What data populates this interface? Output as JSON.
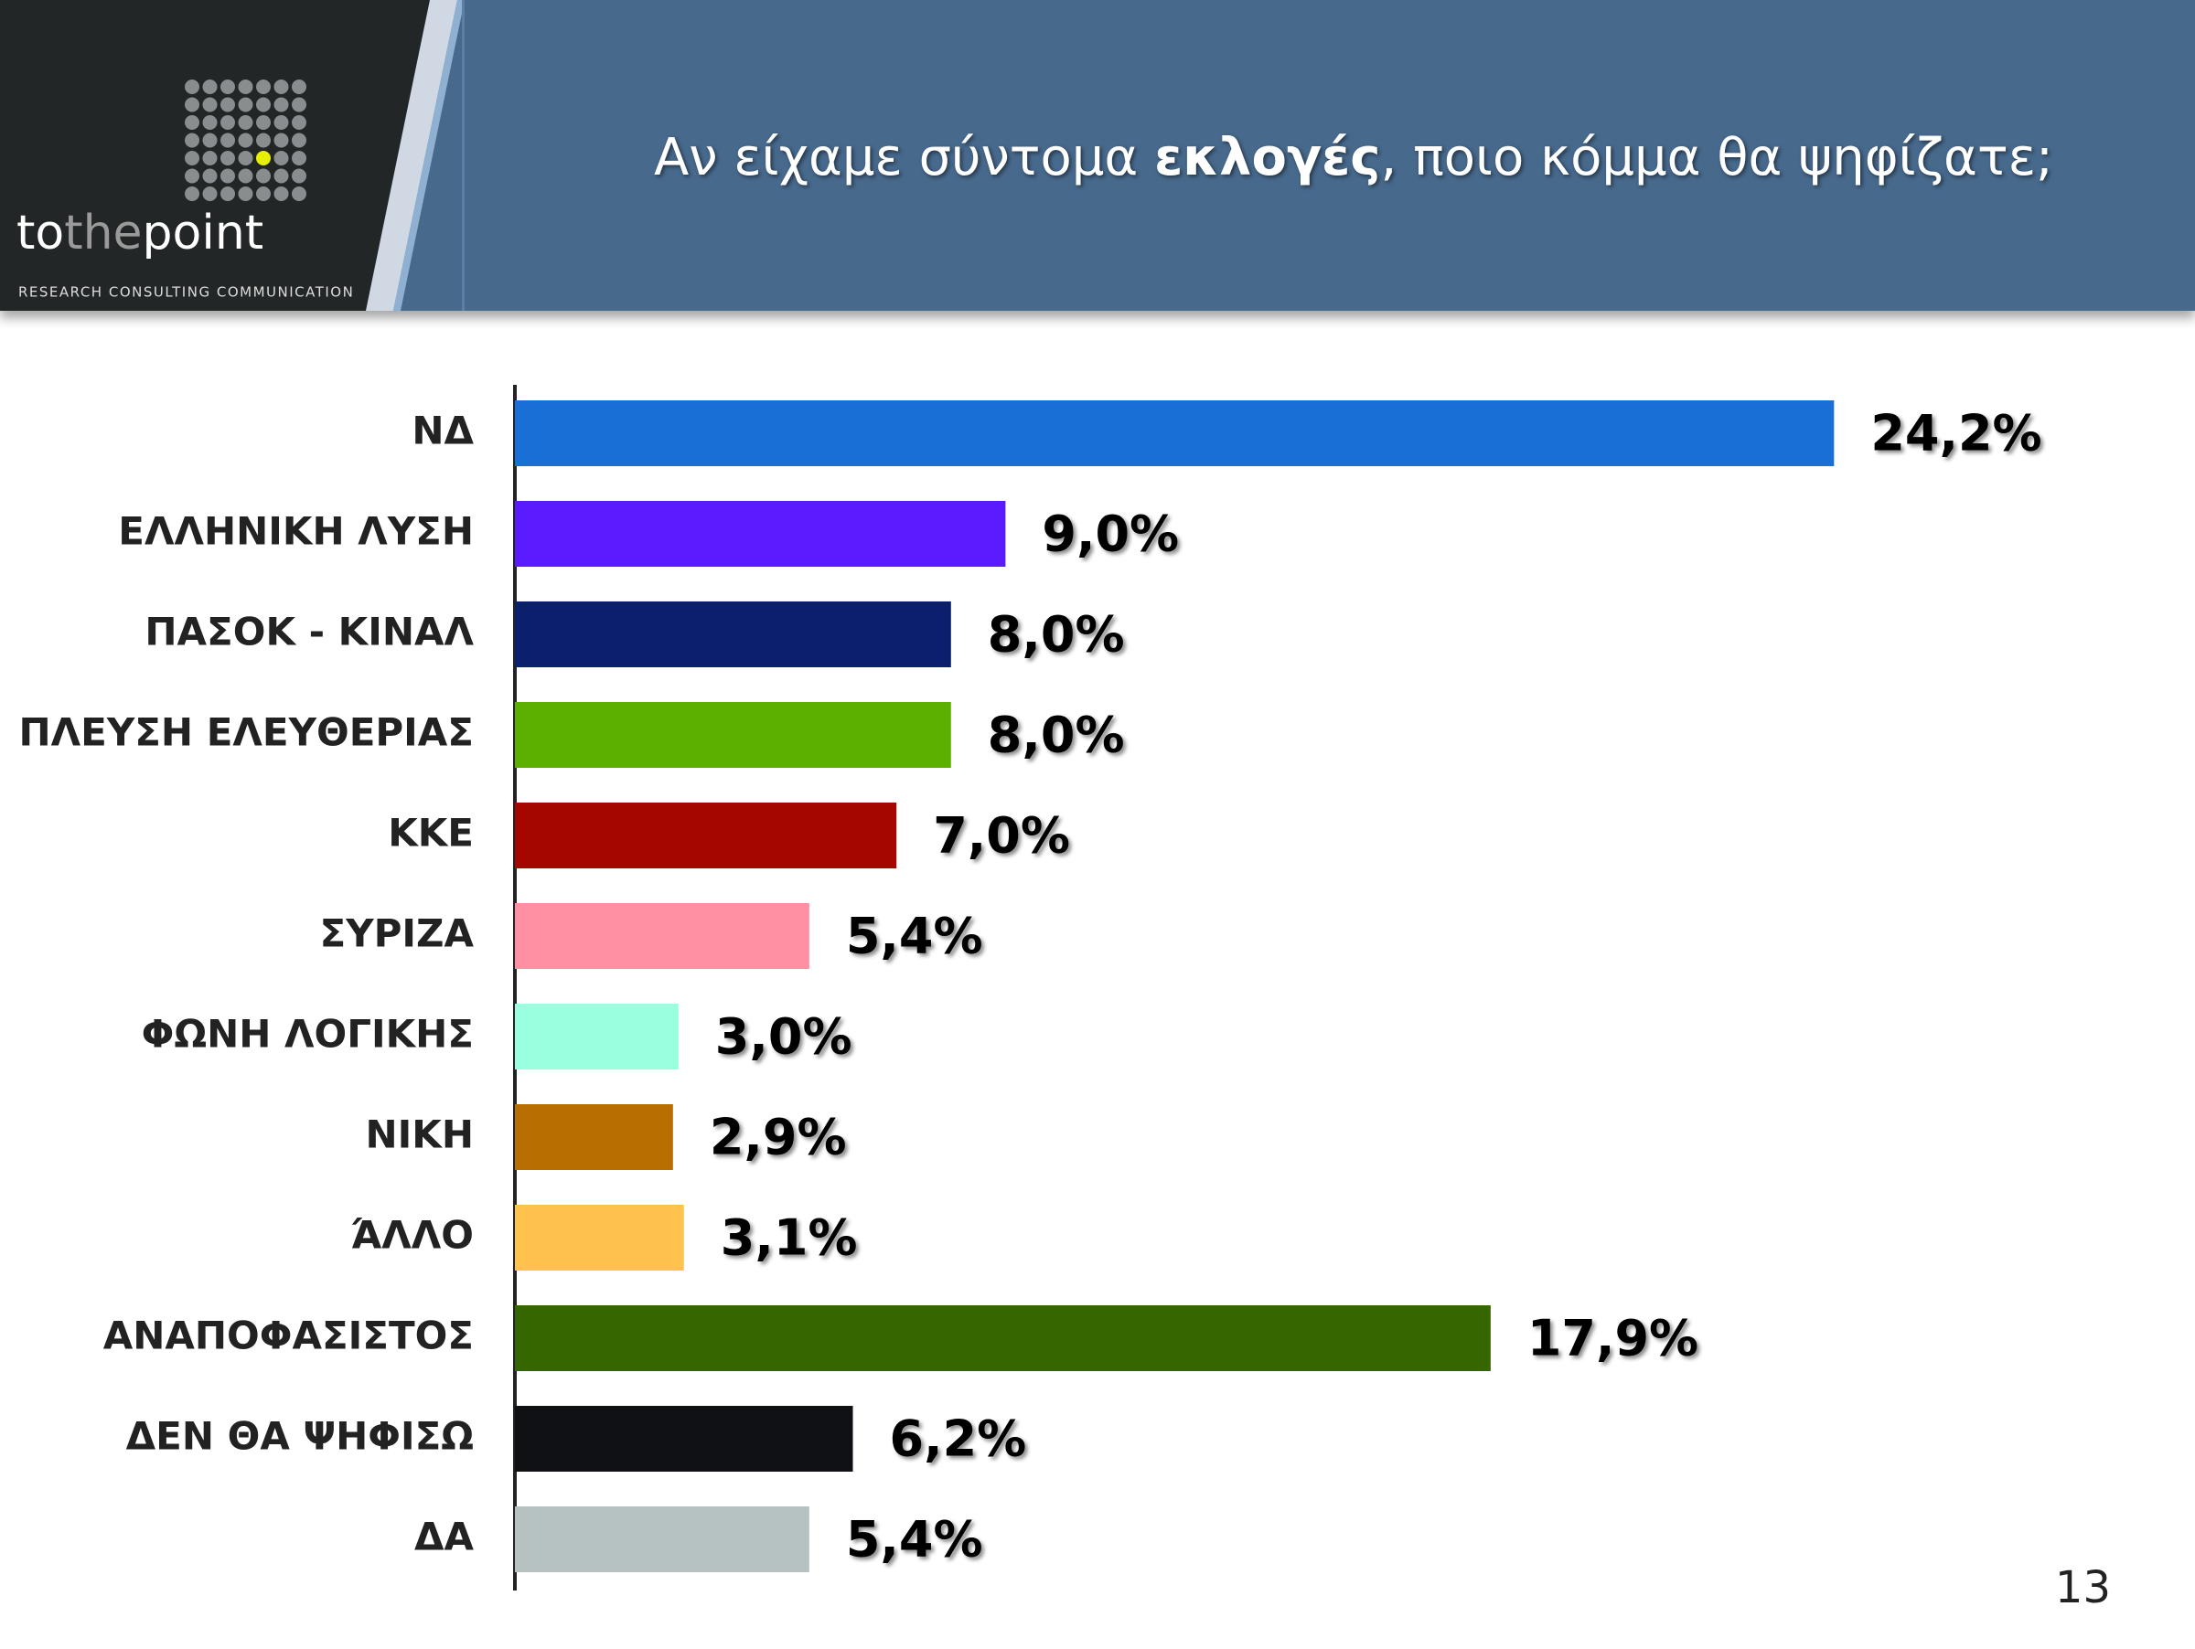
{
  "chart_data": {
    "type": "bar",
    "orientation": "horizontal",
    "title_parts": [
      "Αν είχαμε σύντομα ",
      "εκλογές",
      ", ποιο κόμμα θα ψηφίζατε;"
    ],
    "categories": [
      "ΝΔ",
      "ΕΛΛΗΝΙΚΗ ΛΥΣΗ",
      "ΠΑΣΟΚ - ΚΙΝΑΛ",
      "ΠΛΕΥΣΗ ΕΛΕΥΘΕΡΙΑΣ",
      "ΚΚΕ",
      "ΣΥΡΙΖΑ",
      "ΦΩΝΗ ΛΟΓΙΚΗΣ",
      "ΝΙΚΗ",
      "ΆΛΛΟ",
      "ΑΝΑΠΟΦΑΣΙΣΤΟΣ",
      "ΔΕΝ ΘΑ ΨΗΦΙΣΩ",
      "ΔΑ"
    ],
    "values": [
      24.2,
      9.0,
      8.0,
      8.0,
      7.0,
      5.4,
      3.0,
      2.9,
      3.1,
      17.9,
      6.2,
      5.4
    ],
    "value_labels": [
      "24,2%",
      "9,0%",
      "8,0%",
      "8,0%",
      "7,0%",
      "5,4%",
      "3,0%",
      "2,9%",
      "3,1%",
      "17,9%",
      "6,2%",
      "5,4%"
    ],
    "colors": [
      "#1a6fd6",
      "#5a1bff",
      "#0b1f6e",
      "#5cb000",
      "#a60600",
      "#ff8fa3",
      "#99ffdf",
      "#b86e00",
      "#ffc34d",
      "#356600",
      "#101114",
      "#b5c2c1"
    ],
    "xlim": [
      0,
      30
    ]
  },
  "header": {
    "logo_parts": [
      "to",
      "the",
      "point"
    ],
    "tagline": "RESEARCH CONSULTING COMMUNICATION"
  },
  "page_number": "13"
}
